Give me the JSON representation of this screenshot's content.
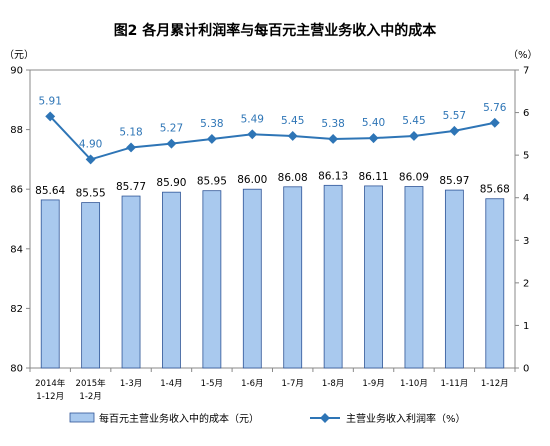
{
  "chart_data": {
    "type": "bar",
    "title": "图2  各月累计利润率与每百元主营业务收入中的成本",
    "categories": [
      [
        "2014年",
        "1-12月"
      ],
      [
        "2015年",
        "1-2月"
      ],
      [
        "1-3月"
      ],
      [
        "1-4月"
      ],
      [
        "1-5月"
      ],
      [
        "1-6月"
      ],
      [
        "1-7月"
      ],
      [
        "1-8月"
      ],
      [
        "1-9月"
      ],
      [
        "1-10月"
      ],
      [
        "1-11月"
      ],
      [
        "1-12月"
      ]
    ],
    "series": [
      {
        "name": "每百元主营业务收入中的成本（元）",
        "type": "bar",
        "axis": "left",
        "values": [
          85.64,
          85.55,
          85.77,
          85.9,
          85.95,
          86.0,
          86.08,
          86.13,
          86.11,
          86.09,
          85.97,
          85.68
        ],
        "labels": [
          "85.64",
          "85.55",
          "85.77",
          "85.90",
          "85.95",
          "86.00",
          "86.08",
          "86.13",
          "86.11",
          "86.09",
          "85.97",
          "85.68"
        ]
      },
      {
        "name": "主营业务收入利润率（%）",
        "type": "line",
        "axis": "right",
        "values": [
          5.91,
          4.9,
          5.18,
          5.27,
          5.38,
          5.49,
          5.45,
          5.38,
          5.4,
          5.45,
          5.57,
          5.76
        ],
        "labels": [
          "5.91",
          "4.90",
          "5.18",
          "5.27",
          "5.38",
          "5.49",
          "5.45",
          "5.38",
          "5.40",
          "5.45",
          "5.57",
          "5.76"
        ]
      }
    ],
    "y_left": {
      "unit": "（元）",
      "ylim": [
        80,
        90
      ],
      "ticks": [
        "80",
        "82",
        "84",
        "86",
        "88",
        "90"
      ]
    },
    "y_right": {
      "unit": "（%）",
      "ylim": [
        0,
        7
      ],
      "ticks": [
        "0",
        "1",
        "2",
        "3",
        "4",
        "5",
        "6",
        "7"
      ]
    },
    "grid": false,
    "legend_position": "bottom",
    "colors": {
      "bar_fill": "#a9c9ee",
      "bar_stroke": "#2f5597",
      "line": "#2e75b6",
      "label": "#2e75b6"
    }
  }
}
